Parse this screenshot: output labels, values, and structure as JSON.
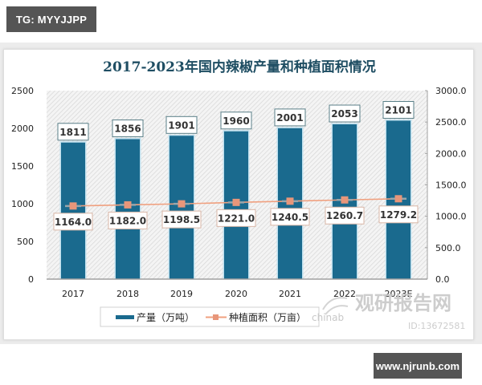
{
  "tags": {
    "top": "TG: MYYJJPP",
    "bottom": "www.njrunb.com"
  },
  "watermark": {
    "brand": "观研报告网",
    "site": "chinabaogao.com",
    "id": "ID:13672581"
  },
  "colors": {
    "bar": "#1a6a8e",
    "line": "#f0a07f",
    "marker": "#e8967a",
    "title": "#1f4e63"
  },
  "chart_data": {
    "type": "bar",
    "title": "2017-2023年国内辣椒产量和种植面积情况",
    "categories": [
      "2017",
      "2018",
      "2019",
      "2020",
      "2021",
      "2022",
      "2023E"
    ],
    "series": [
      {
        "name": "产量（万吨）",
        "type": "bar",
        "axis": "left",
        "values": [
          1811,
          1856,
          1901,
          1960,
          2001,
          2053,
          2101
        ],
        "labels": [
          "1811",
          "1856",
          "1901",
          "1960",
          "2001",
          "2053",
          "2101"
        ]
      },
      {
        "name": "种植面积（万亩）",
        "type": "line",
        "axis": "right",
        "values": [
          1164.0,
          1182.0,
          1198.5,
          1221.0,
          1240.5,
          1260.7,
          1279.2
        ],
        "labels": [
          "1164.0",
          "1182.0",
          "1198.5",
          "1221.0",
          "1240.5",
          "1260.7",
          "1279.2"
        ]
      }
    ],
    "left_axis": {
      "ylim": [
        0,
        2500
      ],
      "ticks": [
        "0",
        "500",
        "1000",
        "1500",
        "2000",
        "2500"
      ]
    },
    "right_axis": {
      "ylim": [
        0,
        3000
      ],
      "ticks": [
        "0.0",
        "500.0",
        "1000.0",
        "1500.0",
        "2000.0",
        "2500.0",
        "3000.0"
      ]
    },
    "xlabel": "",
    "ylabel": "",
    "grid": false,
    "legend_position": "bottom",
    "legend": [
      "产量（万吨）",
      "种植面积（万亩）"
    ]
  }
}
